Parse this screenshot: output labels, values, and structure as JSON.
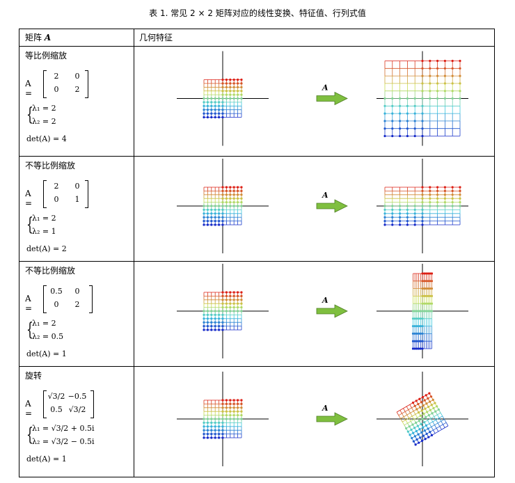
{
  "caption": "表 1. 常见 2 × 2 矩阵对应的线性变换、特征值、行列式值",
  "header": {
    "col1": "矩阵 ",
    "col1_sym": "A",
    "col2": "几何特征"
  },
  "arrow_label": "A",
  "colors": {
    "arrow": "#7fbf3f",
    "axis": "#000000"
  },
  "rows": [
    {
      "title": "等比例缩放",
      "mat_label": "A =",
      "m": [
        "2",
        "0",
        "0",
        "2"
      ],
      "eig1": "λ₁ = 2",
      "eig2": "λ₂ = 2",
      "det": "det(A) = 4",
      "transform": [
        2,
        0,
        0,
        2
      ]
    },
    {
      "title": "不等比例缩放",
      "mat_label": "A =",
      "m": [
        "2",
        "0",
        "0",
        "1"
      ],
      "eig1": "λ₁ = 2",
      "eig2": "λ₂ = 1",
      "det": "det(A) = 2",
      "transform": [
        2,
        0,
        0,
        1
      ]
    },
    {
      "title": "不等比例缩放",
      "mat_label": "A =",
      "m": [
        "0.5",
        "0",
        "0",
        "2"
      ],
      "eig1": "λ₁ = 2",
      "eig2": "λ₂ = 0.5",
      "det": "det(A) = 1",
      "transform": [
        0.5,
        0,
        0,
        2
      ]
    },
    {
      "title": "旋转",
      "mat_label": "A =",
      "m": [
        "√3/2",
        "−0.5",
        "0.5",
        "√3/2"
      ],
      "eig1": "λ₁ = √3/2 + 0.5i",
      "eig2": "λ₂ = √3/2 − 0.5i",
      "det": "det(A) = 1",
      "transform": [
        0.866,
        -0.5,
        0.5,
        0.866
      ]
    }
  ]
}
